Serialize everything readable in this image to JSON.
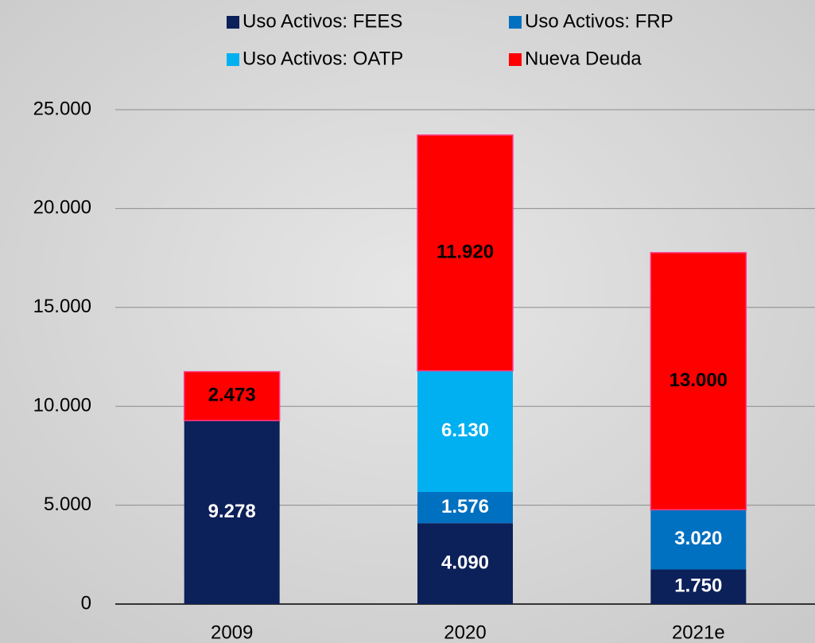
{
  "chart_data": {
    "type": "stacked_bar",
    "categories": [
      "2009",
      "2020",
      "2021e"
    ],
    "series": [
      {
        "name": "Uso Activos: FEES",
        "color": "#0c2059",
        "label_color": "#ffffff",
        "values": [
          9278,
          4090,
          1750
        ],
        "value_labels": [
          "9.278",
          "4.090",
          "1.750"
        ]
      },
      {
        "name": "Uso Activos: FRP",
        "color": "#0070c0",
        "label_color": "#ffffff",
        "values": [
          null,
          1576,
          3020
        ],
        "value_labels": [
          null,
          "1.576",
          "3.020"
        ]
      },
      {
        "name": "Uso Activos: OATP",
        "color": "#00b0f0",
        "label_color": "#ffffff",
        "values": [
          null,
          6130,
          null
        ],
        "value_labels": [
          null,
          "6.130",
          null
        ]
      },
      {
        "name": "Nueva Deuda",
        "color": "#ff0000",
        "label_color": "#000000",
        "values": [
          2473,
          11920,
          13000
        ],
        "value_labels": [
          "2.473",
          "11.920",
          "13.000"
        ]
      }
    ],
    "ylim": [
      0,
      25000
    ],
    "yticks": [
      0,
      {
        "value": 5000,
        "label": "5.000"
      },
      {
        "value": 10000,
        "label": "10.000"
      },
      {
        "value": 15000,
        "label": "15.000"
      },
      {
        "value": 20000,
        "label": "20.000"
      },
      {
        "value": 25000,
        "label": "25.000"
      }
    ],
    "grid": true
  }
}
